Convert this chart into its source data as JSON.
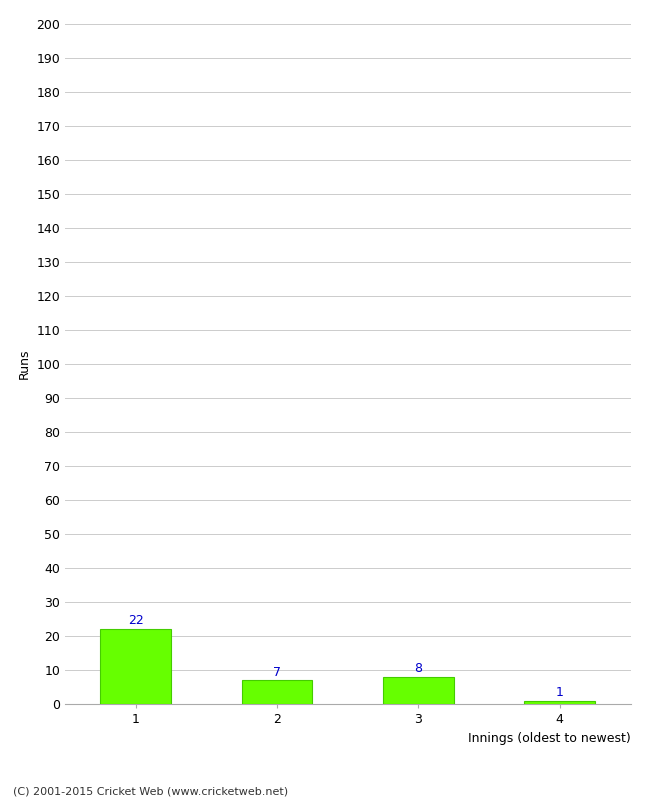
{
  "categories": [
    "1",
    "2",
    "3",
    "4"
  ],
  "values": [
    22,
    7,
    8,
    1
  ],
  "bar_colors": [
    "#66ff00",
    "#66ff00",
    "#66ff00",
    "#66ff00"
  ],
  "bar_edge_colors": [
    "#44cc00",
    "#44cc00",
    "#44cc00",
    "#44cc00"
  ],
  "label_color": "#0000cc",
  "xlabel": "Innings (oldest to newest)",
  "ylabel": "Runs",
  "ylim": [
    0,
    200
  ],
  "yticks": [
    0,
    10,
    20,
    30,
    40,
    50,
    60,
    70,
    80,
    90,
    100,
    110,
    120,
    130,
    140,
    150,
    160,
    170,
    180,
    190,
    200
  ],
  "grid_color": "#cccccc",
  "background_color": "#ffffff",
  "footer": "(C) 2001-2015 Cricket Web (www.cricketweb.net)",
  "bar_width": 0.5
}
